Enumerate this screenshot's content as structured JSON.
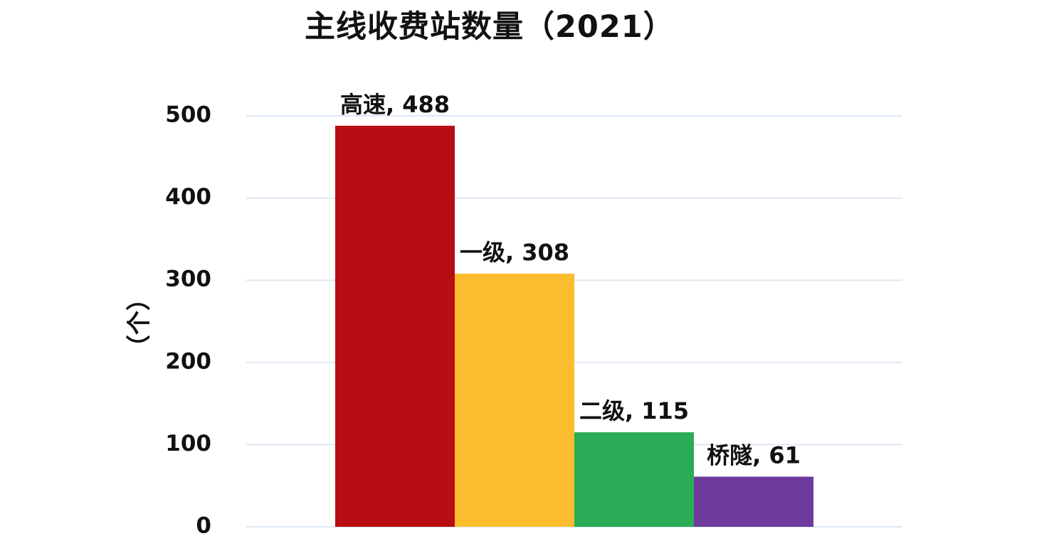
{
  "chart_data": {
    "type": "bar",
    "title": "主线收费站数量（2021）",
    "xlabel": "",
    "ylabel": "（个）",
    "categories": [
      "高速",
      "一级",
      "二级",
      "桥隧"
    ],
    "values": [
      488,
      308,
      115,
      61
    ],
    "data_labels": [
      "高速, 488",
      "一级, 308",
      "二级, 115",
      "桥隧, 61"
    ],
    "colors": [
      "#b80d12",
      "#fbbd2d",
      "#2aab56",
      "#6e3a9c"
    ],
    "gridline_color": "#dde8f3",
    "ylim": [
      0,
      500
    ],
    "yticks": [
      "0",
      "100",
      "200",
      "300",
      "400",
      "500"
    ],
    "grid": true,
    "legend": "none"
  }
}
